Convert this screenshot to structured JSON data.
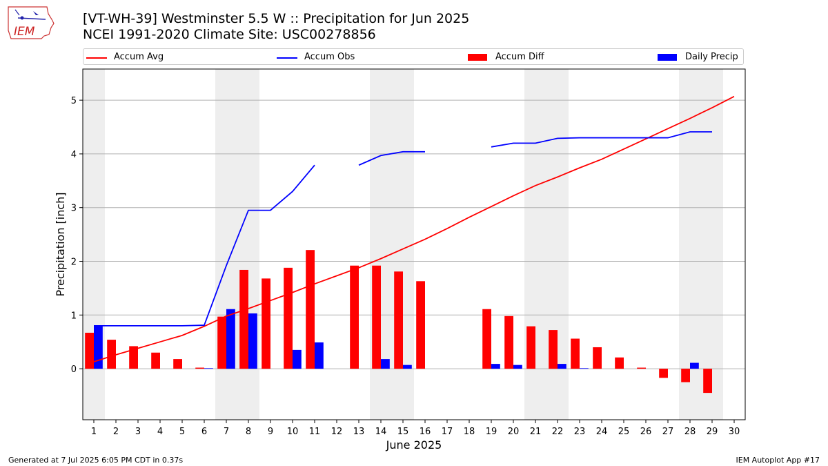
{
  "header": {
    "title_line1": "[VT-WH-39] Westminster 5.5 W :: Precipitation for Jun 2025",
    "title_line2": "NCEI 1991-2020 Climate Site: USC00278856"
  },
  "logo": {
    "text": "IEM",
    "icon": "iem-iowa-logo-icon"
  },
  "legend": {
    "items": [
      {
        "label": "Accum Avg",
        "type": "line",
        "color": "#ff0000"
      },
      {
        "label": "Accum Obs",
        "type": "line",
        "color": "#0000ff"
      },
      {
        "label": "Accum Diff",
        "type": "bar",
        "color": "#ff0000"
      },
      {
        "label": "Daily Precip",
        "type": "bar",
        "color": "#0000ff"
      }
    ]
  },
  "footer": {
    "left": "Generated at 7 Jul 2025 6:05 PM CDT in 0.37s",
    "right": "IEM Autoplot App #17"
  },
  "chart_data": {
    "type": "bar",
    "xlabel": "June 2025",
    "ylabel": "Precipitation [inch]",
    "xlim": [
      0.5,
      30.5
    ],
    "ylim": [
      -0.95,
      5.58
    ],
    "yticks": [
      0,
      1,
      2,
      3,
      4,
      5
    ],
    "grid": "horizontal",
    "legend_position": "top",
    "weekend_shading": [
      [
        0.5,
        1.5
      ],
      [
        6.5,
        8.5
      ],
      [
        13.5,
        15.5
      ],
      [
        20.5,
        22.5
      ],
      [
        27.5,
        29.5
      ]
    ],
    "categories": [
      "1",
      "2",
      "3",
      "4",
      "5",
      "6",
      "7",
      "8",
      "9",
      "10",
      "11",
      "12",
      "13",
      "14",
      "15",
      "16",
      "17",
      "18",
      "19",
      "20",
      "21",
      "22",
      "23",
      "24",
      "25",
      "26",
      "27",
      "28",
      "29",
      "30"
    ],
    "series": [
      {
        "name": "Accum Avg",
        "type": "line",
        "color": "#ff0000",
        "values": [
          0.13,
          0.26,
          0.38,
          0.5,
          0.62,
          0.79,
          0.98,
          1.12,
          1.27,
          1.42,
          1.58,
          1.73,
          1.88,
          2.05,
          2.23,
          2.41,
          2.61,
          2.82,
          3.02,
          3.22,
          3.41,
          3.57,
          3.74,
          3.9,
          4.09,
          4.28,
          4.47,
          4.66,
          4.86,
          5.07
        ]
      },
      {
        "name": "Accum Obs",
        "type": "line",
        "color": "#0000ff",
        "values": [
          0.8,
          0.8,
          0.8,
          0.8,
          0.8,
          0.81,
          1.92,
          2.95,
          2.95,
          3.3,
          3.79,
          null,
          3.79,
          3.97,
          4.04,
          4.04,
          null,
          null,
          4.13,
          4.2,
          4.2,
          4.29,
          4.3,
          4.3,
          4.3,
          4.3,
          4.3,
          4.41,
          4.41,
          null
        ]
      },
      {
        "name": "Accum Diff",
        "type": "bar",
        "color": "#ff0000",
        "values": [
          0.67,
          0.54,
          0.42,
          0.3,
          0.18,
          0.02,
          0.97,
          1.84,
          1.68,
          1.88,
          2.21,
          null,
          1.92,
          1.92,
          1.81,
          1.63,
          null,
          null,
          1.11,
          0.98,
          0.79,
          0.72,
          0.56,
          0.4,
          0.21,
          0.02,
          -0.17,
          -0.25,
          -0.45,
          null
        ]
      },
      {
        "name": "Daily Precip",
        "type": "bar",
        "color": "#0000ff",
        "values": [
          0.8,
          0,
          0,
          0,
          0,
          0.01,
          1.11,
          1.03,
          0,
          0.35,
          0.49,
          null,
          0,
          0.18,
          0.07,
          0,
          null,
          null,
          0.09,
          0.07,
          0,
          0.09,
          0.01,
          0,
          0,
          0,
          0,
          0.11,
          0,
          null
        ]
      }
    ]
  }
}
